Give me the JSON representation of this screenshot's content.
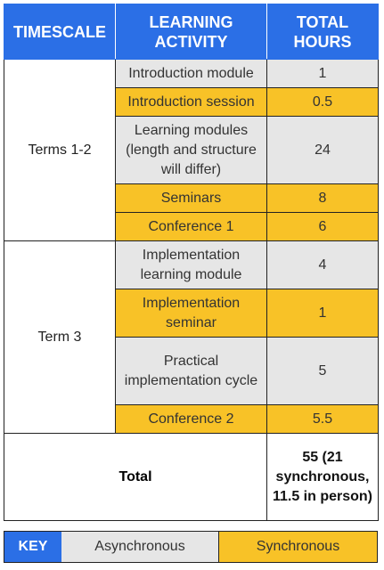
{
  "headers": {
    "timescale": "TIMESCALE",
    "activity": "LEARNING ACTIVITY",
    "hours": "TOTAL HOURS"
  },
  "terms": [
    {
      "label": "Terms 1-2",
      "rows": [
        {
          "activity": "Introduction module",
          "hours": "1",
          "type": "asynchronous"
        },
        {
          "activity": "Introduction session",
          "hours": "0.5",
          "type": "synchronous"
        },
        {
          "activity": "Learning modules (length and structure will differ)",
          "hours": "24",
          "type": "asynchronous"
        },
        {
          "activity": "Seminars",
          "hours": "8",
          "type": "synchronous"
        },
        {
          "activity": "Conference 1",
          "hours": "6",
          "type": "synchronous"
        }
      ]
    },
    {
      "label": "Term 3",
      "rows": [
        {
          "activity": "Implementation learning module",
          "hours": "4",
          "type": "asynchronous"
        },
        {
          "activity": "Implementation seminar",
          "hours": "1",
          "type": "synchronous"
        },
        {
          "activity": "Practical implementation cycle",
          "hours": "5",
          "type": "asynchronous"
        },
        {
          "activity": "Conference 2",
          "hours": "5.5",
          "type": "synchronous"
        }
      ]
    }
  ],
  "total": {
    "label": "Total",
    "value": "55 (21 synchronous, 11.5 in person)"
  },
  "key": {
    "label": "KEY",
    "asynchronous": "Asynchronous",
    "synchronous": "Synchronous"
  },
  "colors": {
    "header_blue": "#2b6fe6",
    "asynchronous_grey": "#e6e6e6",
    "synchronous_yellow": "#f8c227"
  }
}
